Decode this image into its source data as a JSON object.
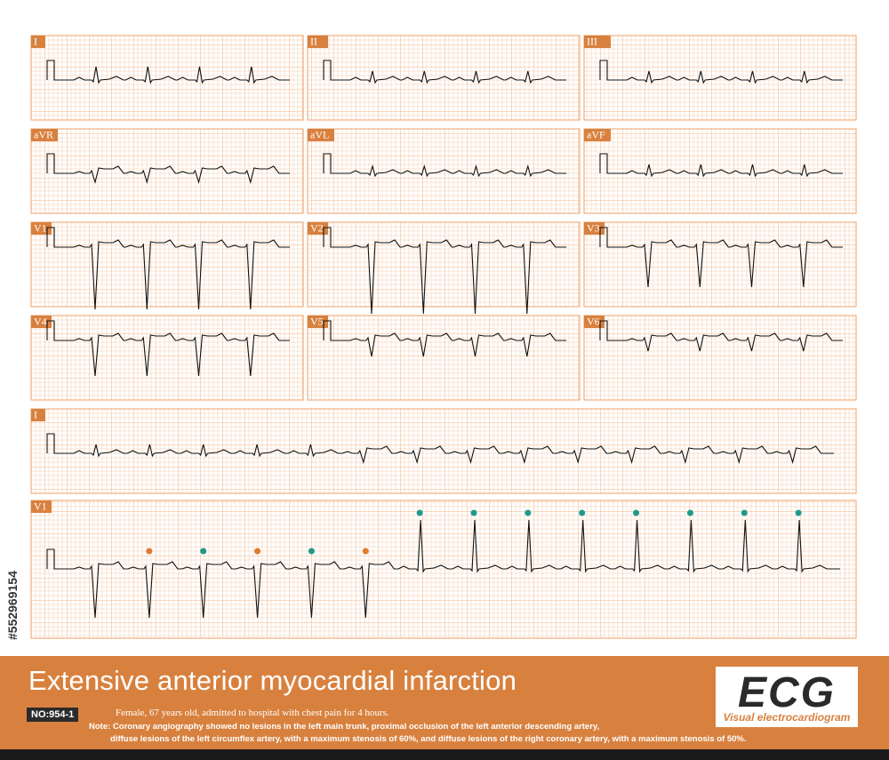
{
  "watermark_id": "#552969154",
  "leads": [
    {
      "label": "I"
    },
    {
      "label": "II"
    },
    {
      "label": "III"
    },
    {
      "label": "aVR"
    },
    {
      "label": "aVL"
    },
    {
      "label": "aVF"
    },
    {
      "label": "V1"
    },
    {
      "label": "V2"
    },
    {
      "label": "V3"
    },
    {
      "label": "V4"
    },
    {
      "label": "V5"
    },
    {
      "label": "V6"
    }
  ],
  "rhythm_strips": [
    {
      "label": "I"
    },
    {
      "label": "V1"
    }
  ],
  "footer": {
    "title": "Extensive anterior myocardial infarction",
    "case_id": "NO:954-1",
    "patient": "Female, 67 years old, admitted to hospital with chest pain for 4 hours.",
    "note_line_1": "Note: Coronary angiography showed no lesions in the left main trunk, proximal occlusion of the left anterior descending artery,",
    "note_line_2": "diffuse lesions of the left circumflex artery, with a maximum stenosis of 60%, and diffuse lesions of the right coronary artery, with a maximum stenosis of 50%.",
    "logo": "ECG",
    "logo_subtitle": "Visual electrocardiogram"
  }
}
